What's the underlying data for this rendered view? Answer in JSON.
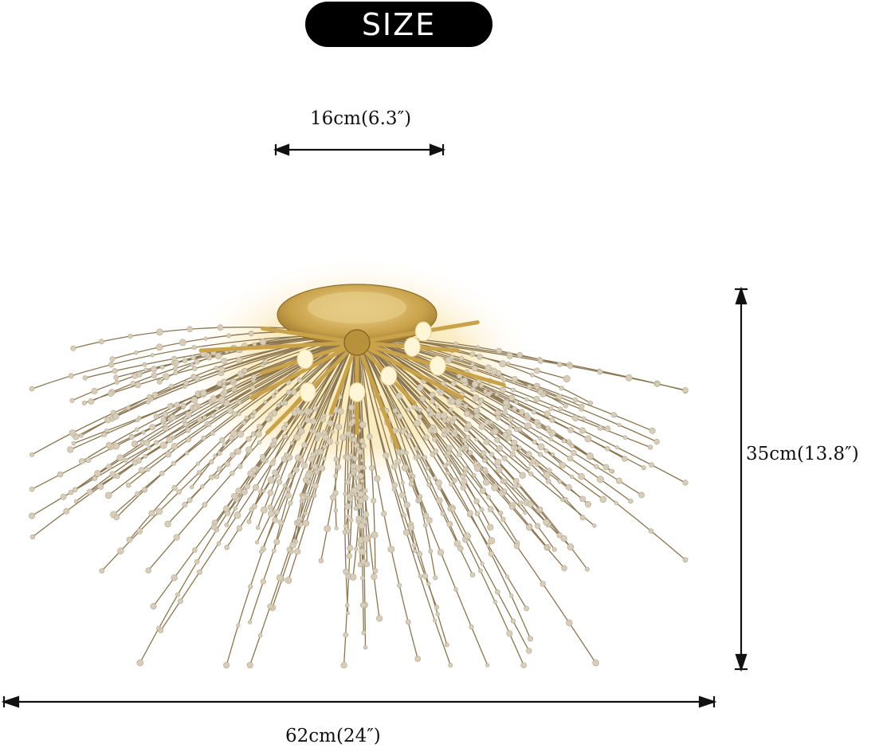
{
  "badge": {
    "label": "SIZE"
  },
  "dimensions": {
    "top_width": "16cm(6.3″)",
    "height": "35cm(13.8″)",
    "overall_width": "62cm(24″)"
  },
  "colors": {
    "badge_bg": "#000000",
    "badge_text": "#ffffff",
    "arrow": "#111111",
    "gold": "#c9a24a",
    "wire": "#8a7550",
    "crystal": "#d8cdb8"
  },
  "product_image": {
    "icon": "sputnik-chandelier-icon"
  }
}
